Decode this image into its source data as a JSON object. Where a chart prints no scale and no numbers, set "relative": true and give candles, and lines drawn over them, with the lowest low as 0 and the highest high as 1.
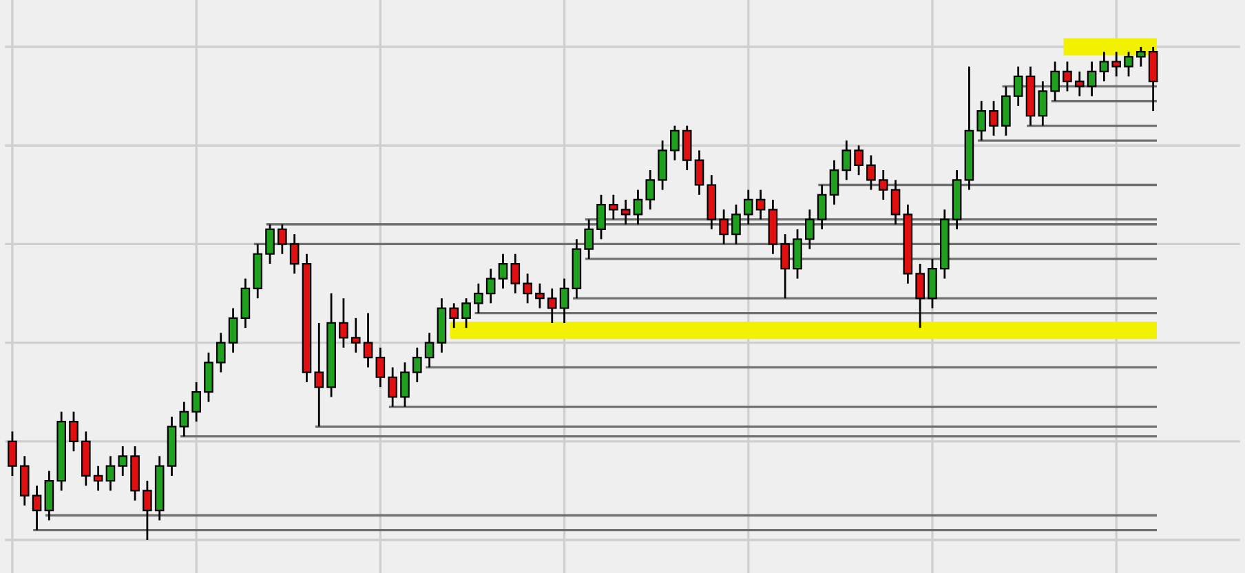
{
  "chart_data": {
    "type": "candlestick",
    "relative": true,
    "grid": true,
    "categories": [
      null,
      null,
      null,
      null,
      null,
      null,
      null,
      null,
      null,
      null,
      null,
      null,
      null,
      null,
      null,
      null,
      null,
      null,
      null,
      null,
      null,
      null,
      null,
      null,
      null,
      null,
      null,
      null,
      null,
      null,
      null,
      null,
      null,
      null,
      null,
      null,
      null,
      null,
      null,
      null,
      null,
      null,
      null,
      null,
      null,
      null,
      null,
      null,
      null,
      null,
      null,
      null,
      null,
      null,
      null,
      null,
      null,
      null,
      null,
      null,
      null,
      null,
      null,
      null,
      null,
      null,
      null,
      null,
      null,
      null,
      null,
      null,
      null,
      null,
      null,
      null,
      null,
      null,
      null,
      null,
      null,
      null,
      null,
      null,
      null,
      null,
      null,
      null,
      null,
      null,
      null,
      null,
      null,
      null
    ],
    "ohlc": [
      [
        0.2,
        0.22,
        0.13,
        0.15
      ],
      [
        0.15,
        0.17,
        0.07,
        0.09
      ],
      [
        0.09,
        0.11,
        0.02,
        0.06
      ],
      [
        0.06,
        0.14,
        0.04,
        0.12
      ],
      [
        0.12,
        0.26,
        0.1,
        0.24
      ],
      [
        0.24,
        0.26,
        0.18,
        0.2
      ],
      [
        0.2,
        0.22,
        0.11,
        0.13
      ],
      [
        0.13,
        0.15,
        0.1,
        0.12
      ],
      [
        0.12,
        0.17,
        0.1,
        0.15
      ],
      [
        0.15,
        0.19,
        0.13,
        0.17
      ],
      [
        0.17,
        0.19,
        0.08,
        0.1
      ],
      [
        0.1,
        0.12,
        0.0,
        0.06
      ],
      [
        0.06,
        0.17,
        0.04,
        0.15
      ],
      [
        0.15,
        0.25,
        0.13,
        0.23
      ],
      [
        0.23,
        0.28,
        0.21,
        0.26
      ],
      [
        0.26,
        0.32,
        0.24,
        0.3
      ],
      [
        0.3,
        0.38,
        0.28,
        0.36
      ],
      [
        0.36,
        0.42,
        0.34,
        0.4
      ],
      [
        0.4,
        0.47,
        0.38,
        0.45
      ],
      [
        0.45,
        0.53,
        0.43,
        0.51
      ],
      [
        0.51,
        0.6,
        0.49,
        0.58
      ],
      [
        0.58,
        0.64,
        0.56,
        0.63
      ],
      [
        0.63,
        0.64,
        0.58,
        0.6
      ],
      [
        0.6,
        0.62,
        0.54,
        0.56
      ],
      [
        0.56,
        0.58,
        0.32,
        0.34
      ],
      [
        0.34,
        0.44,
        0.23,
        0.31
      ],
      [
        0.31,
        0.5,
        0.29,
        0.44
      ],
      [
        0.44,
        0.49,
        0.39,
        0.41
      ],
      [
        0.41,
        0.45,
        0.38,
        0.4
      ],
      [
        0.4,
        0.46,
        0.35,
        0.37
      ],
      [
        0.37,
        0.39,
        0.31,
        0.33
      ],
      [
        0.33,
        0.35,
        0.27,
        0.29
      ],
      [
        0.29,
        0.36,
        0.27,
        0.34
      ],
      [
        0.34,
        0.39,
        0.32,
        0.37
      ],
      [
        0.37,
        0.42,
        0.35,
        0.4
      ],
      [
        0.4,
        0.49,
        0.38,
        0.47
      ],
      [
        0.47,
        0.48,
        0.43,
        0.45
      ],
      [
        0.45,
        0.49,
        0.43,
        0.48
      ],
      [
        0.48,
        0.52,
        0.46,
        0.5
      ],
      [
        0.5,
        0.55,
        0.48,
        0.53
      ],
      [
        0.53,
        0.58,
        0.51,
        0.56
      ],
      [
        0.56,
        0.58,
        0.5,
        0.52
      ],
      [
        0.52,
        0.54,
        0.48,
        0.5
      ],
      [
        0.5,
        0.52,
        0.47,
        0.49
      ],
      [
        0.49,
        0.51,
        0.44,
        0.47
      ],
      [
        0.47,
        0.53,
        0.44,
        0.51
      ],
      [
        0.51,
        0.61,
        0.49,
        0.59
      ],
      [
        0.59,
        0.65,
        0.57,
        0.63
      ],
      [
        0.63,
        0.7,
        0.61,
        0.68
      ],
      [
        0.68,
        0.7,
        0.65,
        0.67
      ],
      [
        0.67,
        0.69,
        0.64,
        0.66
      ],
      [
        0.66,
        0.71,
        0.64,
        0.69
      ],
      [
        0.69,
        0.75,
        0.67,
        0.73
      ],
      [
        0.73,
        0.81,
        0.71,
        0.79
      ],
      [
        0.79,
        0.84,
        0.77,
        0.83
      ],
      [
        0.83,
        0.84,
        0.75,
        0.77
      ],
      [
        0.77,
        0.79,
        0.7,
        0.72
      ],
      [
        0.72,
        0.74,
        0.63,
        0.65
      ],
      [
        0.65,
        0.67,
        0.6,
        0.62
      ],
      [
        0.62,
        0.68,
        0.6,
        0.66
      ],
      [
        0.66,
        0.71,
        0.64,
        0.69
      ],
      [
        0.69,
        0.71,
        0.65,
        0.67
      ],
      [
        0.67,
        0.69,
        0.58,
        0.6
      ],
      [
        0.6,
        0.62,
        0.49,
        0.55
      ],
      [
        0.55,
        0.63,
        0.53,
        0.61
      ],
      [
        0.61,
        0.67,
        0.59,
        0.65
      ],
      [
        0.65,
        0.72,
        0.63,
        0.7
      ],
      [
        0.7,
        0.77,
        0.68,
        0.75
      ],
      [
        0.75,
        0.81,
        0.73,
        0.79
      ],
      [
        0.79,
        0.8,
        0.74,
        0.76
      ],
      [
        0.76,
        0.78,
        0.71,
        0.73
      ],
      [
        0.73,
        0.75,
        0.69,
        0.71
      ],
      [
        0.71,
        0.73,
        0.64,
        0.66
      ],
      [
        0.66,
        0.68,
        0.52,
        0.54
      ],
      [
        0.54,
        0.56,
        0.43,
        0.49
      ],
      [
        0.49,
        0.57,
        0.47,
        0.55
      ],
      [
        0.55,
        0.67,
        0.53,
        0.65
      ],
      [
        0.65,
        0.75,
        0.63,
        0.73
      ],
      [
        0.73,
        0.96,
        0.71,
        0.83
      ],
      [
        0.83,
        0.89,
        0.81,
        0.87
      ],
      [
        0.87,
        0.89,
        0.82,
        0.84
      ],
      [
        0.84,
        0.92,
        0.82,
        0.9
      ],
      [
        0.9,
        0.96,
        0.88,
        0.94
      ],
      [
        0.94,
        0.96,
        0.84,
        0.86
      ],
      [
        0.86,
        0.93,
        0.84,
        0.91
      ],
      [
        0.91,
        0.97,
        0.89,
        0.95
      ],
      [
        0.95,
        0.97,
        0.91,
        0.93
      ],
      [
        0.93,
        0.95,
        0.9,
        0.92
      ],
      [
        0.92,
        0.97,
        0.9,
        0.95
      ],
      [
        0.95,
        0.99,
        0.93,
        0.97
      ],
      [
        0.97,
        0.99,
        0.94,
        0.96
      ],
      [
        0.96,
        0.99,
        0.94,
        0.98
      ],
      [
        0.98,
        1.0,
        0.96,
        0.99
      ],
      [
        0.99,
        1.0,
        0.87,
        0.93
      ]
    ],
    "colors": [
      "#e01010",
      "#e01010",
      "#e01010",
      "#1fa01f",
      "#1fa01f",
      "#e01010",
      "#e01010",
      "#e01010",
      "#1fa01f",
      "#1fa01f",
      "#e01010",
      "#e01010",
      "#1fa01f",
      "#1fa01f",
      "#1fa01f",
      "#1fa01f",
      "#1fa01f",
      "#1fa01f",
      "#1fa01f",
      "#1fa01f",
      "#1fa01f",
      "#1fa01f",
      "#e01010",
      "#e01010",
      "#e01010",
      "#e01010",
      "#1fa01f",
      "#e01010",
      "#e01010",
      "#e01010",
      "#e01010",
      "#e01010",
      "#1fa01f",
      "#1fa01f",
      "#1fa01f",
      "#1fa01f",
      "#e01010",
      "#1fa01f",
      "#1fa01f",
      "#1fa01f",
      "#1fa01f",
      "#e01010",
      "#e01010",
      "#e01010",
      "#e01010",
      "#1fa01f",
      "#1fa01f",
      "#1fa01f",
      "#1fa01f",
      "#e01010",
      "#e01010",
      "#1fa01f",
      "#1fa01f",
      "#1fa01f",
      "#1fa01f",
      "#e01010",
      "#e01010",
      "#e01010",
      "#e01010",
      "#1fa01f",
      "#1fa01f",
      "#e01010",
      "#e01010",
      "#e01010",
      "#1fa01f",
      "#1fa01f",
      "#1fa01f",
      "#1fa01f",
      "#1fa01f",
      "#e01010",
      "#e01010",
      "#e01010",
      "#e01010",
      "#e01010",
      "#e01010",
      "#1fa01f",
      "#1fa01f",
      "#1fa01f",
      "#1fa01f",
      "#1fa01f",
      "#e01010",
      "#1fa01f",
      "#1fa01f",
      "#e01010",
      "#1fa01f",
      "#1fa01f",
      "#e01010",
      "#e01010",
      "#1fa01f",
      "#1fa01f",
      "#e01010",
      "#1fa01f",
      "#1fa01f",
      "#e01010"
    ],
    "ref_lines": [
      {
        "axis": "y",
        "value": 0.425,
        "color": "#f2f200"
      },
      {
        "axis": "y",
        "value": 1.0,
        "color": "#f2f200"
      },
      {
        "axis": "y",
        "value": 0.64,
        "color": "#707070"
      },
      {
        "axis": "y",
        "value": 0.84,
        "color": "#707070"
      },
      {
        "axis": "y",
        "value": 0.81,
        "color": "#707070"
      },
      {
        "axis": "y",
        "value": 0.89,
        "color": "#707070"
      },
      {
        "axis": "y",
        "value": 0.92,
        "color": "#707070"
      },
      {
        "axis": "y",
        "value": 0.72,
        "color": "#707070"
      },
      {
        "axis": "y",
        "value": 0.65,
        "color": "#707070"
      },
      {
        "axis": "y",
        "value": 0.6,
        "color": "#707070"
      },
      {
        "axis": "y",
        "value": 0.57,
        "color": "#707070"
      },
      {
        "axis": "y",
        "value": 0.49,
        "color": "#707070"
      },
      {
        "axis": "y",
        "value": 0.46,
        "color": "#707070"
      },
      {
        "axis": "y",
        "value": 0.35,
        "color": "#707070"
      },
      {
        "axis": "y",
        "value": 0.27,
        "color": "#707070"
      },
      {
        "axis": "y",
        "value": 0.23,
        "color": "#707070"
      },
      {
        "axis": "y",
        "value": 0.21,
        "color": "#707070"
      },
      {
        "axis": "y",
        "value": 0.05,
        "color": "#707070"
      },
      {
        "axis": "y",
        "value": 0.02,
        "color": "#707070"
      }
    ]
  }
}
